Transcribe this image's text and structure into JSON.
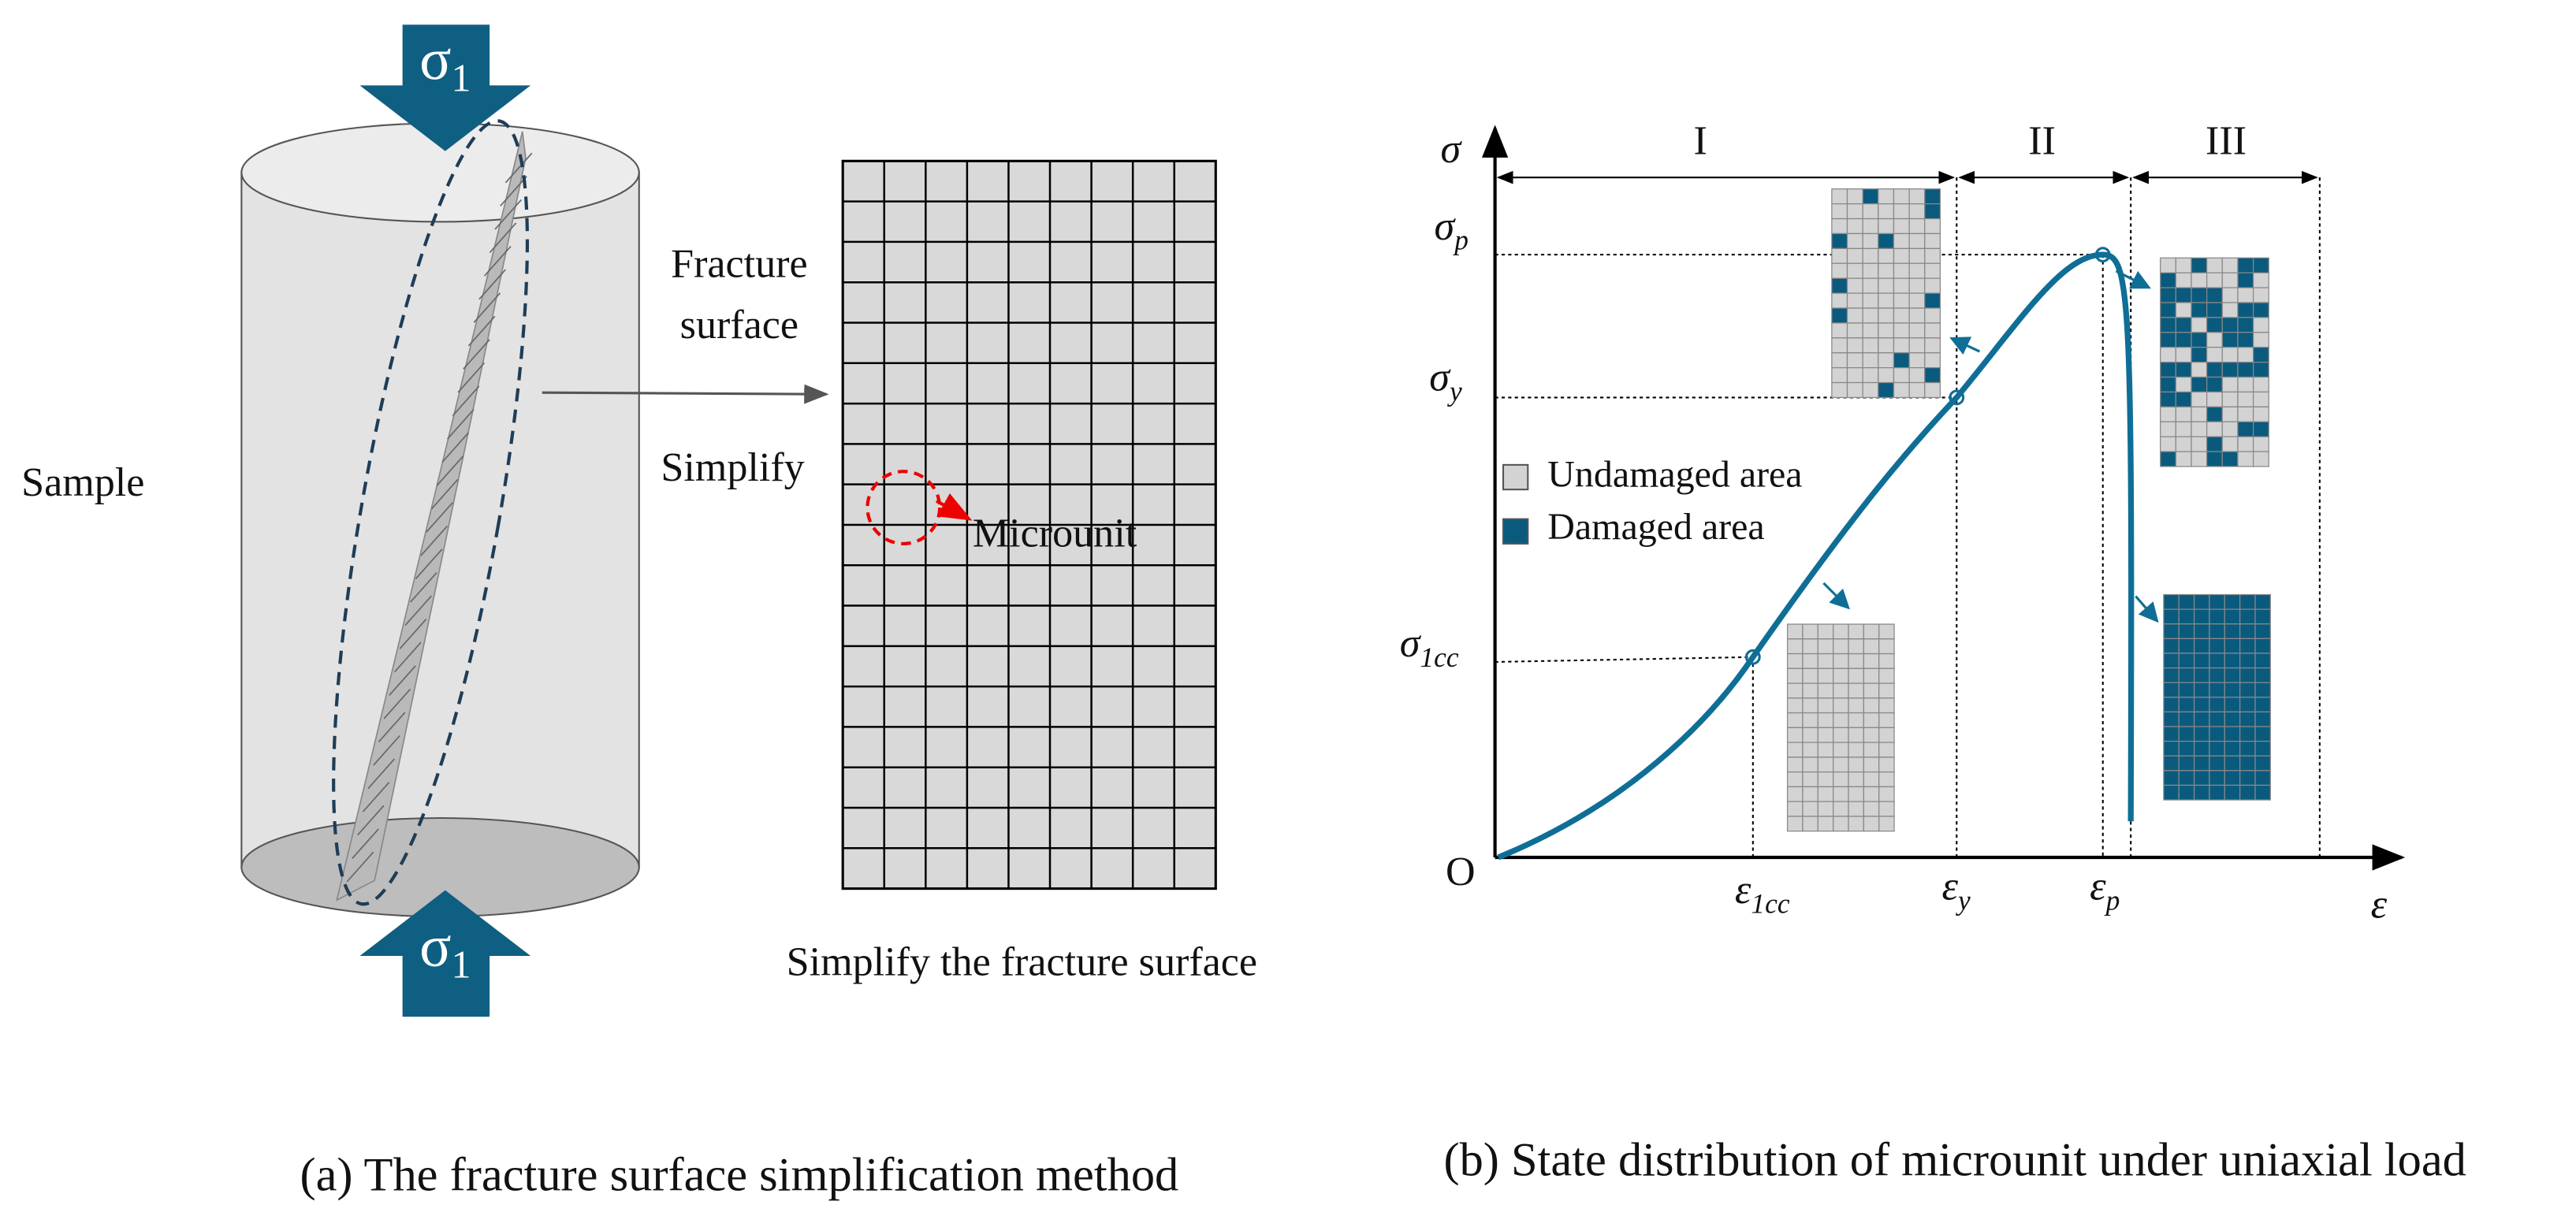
{
  "panel_a": {
    "load_symbol": "σ",
    "load_sub": "1",
    "sample": "Sample",
    "fracture_line1": "Fracture",
    "fracture_line2": "surface",
    "simplify": "Simplify",
    "microunit": "Microunit",
    "grid_caption": "Simplify the fracture surface",
    "caption": "(a) The fracture surface simplification method"
  },
  "panel_b": {
    "y_axis": "σ",
    "x_axis": "ε",
    "origin": "O",
    "regions": [
      "I",
      "II",
      "III"
    ],
    "y_labels": [
      {
        "symbol": "σ",
        "sub": "p"
      },
      {
        "symbol": "σ",
        "sub": "y"
      },
      {
        "symbol": "σ",
        "sub": "1cc"
      }
    ],
    "x_labels": [
      {
        "symbol": "ε",
        "sub": "1cc"
      },
      {
        "symbol": "ε",
        "sub": "y"
      },
      {
        "symbol": "ε",
        "sub": "p"
      }
    ],
    "legend": [
      "Undamaged area",
      "Damaged area"
    ],
    "caption": "(b) State distribution of microunit under uniaxial load"
  }
}
